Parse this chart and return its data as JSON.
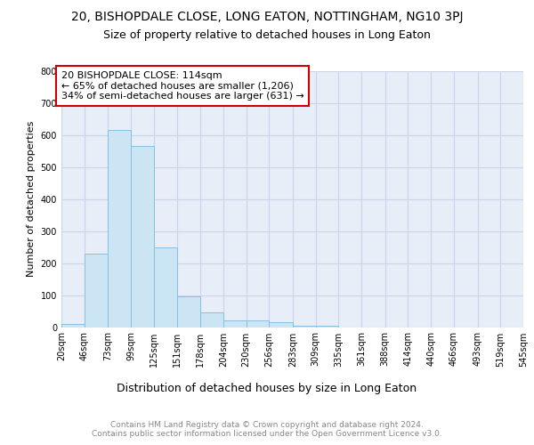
{
  "title1": "20, BISHOPDALE CLOSE, LONG EATON, NOTTINGHAM, NG10 3PJ",
  "title2": "Size of property relative to detached houses in Long Eaton",
  "xlabel": "Distribution of detached houses by size in Long Eaton",
  "ylabel": "Number of detached properties",
  "bin_edges": [
    20,
    46,
    73,
    99,
    125,
    151,
    178,
    204,
    230,
    256,
    283,
    309,
    335,
    361,
    388,
    414,
    440,
    466,
    493,
    519,
    545
  ],
  "bar_heights": [
    10,
    230,
    615,
    565,
    250,
    95,
    45,
    22,
    22,
    15,
    5,
    5,
    0,
    0,
    0,
    0,
    0,
    0,
    0,
    0
  ],
  "bar_color": "#cce5f5",
  "bar_edge_color": "#88bfe0",
  "property_size": 114,
  "annotation_line1": "20 BISHOPDALE CLOSE: 114sqm",
  "annotation_line2": "← 65% of detached houses are smaller (1,206)",
  "annotation_line3": "34% of semi-detached houses are larger (631) →",
  "annotation_box_color": "#ffffff",
  "annotation_edge_color": "#cc0000",
  "ylim": [
    0,
    800
  ],
  "yticks": [
    0,
    100,
    200,
    300,
    400,
    500,
    600,
    700,
    800
  ],
  "bg_color": "#e8eef8",
  "grid_color": "#c8d4e8",
  "fig_bg_color": "#ffffff",
  "footer_text": "Contains HM Land Registry data © Crown copyright and database right 2024.\nContains public sector information licensed under the Open Government Licence v3.0.",
  "title1_fontsize": 10,
  "title2_fontsize": 9,
  "xlabel_fontsize": 9,
  "ylabel_fontsize": 8,
  "tick_fontsize": 7,
  "annotation_fontsize": 8,
  "footer_fontsize": 6.5
}
